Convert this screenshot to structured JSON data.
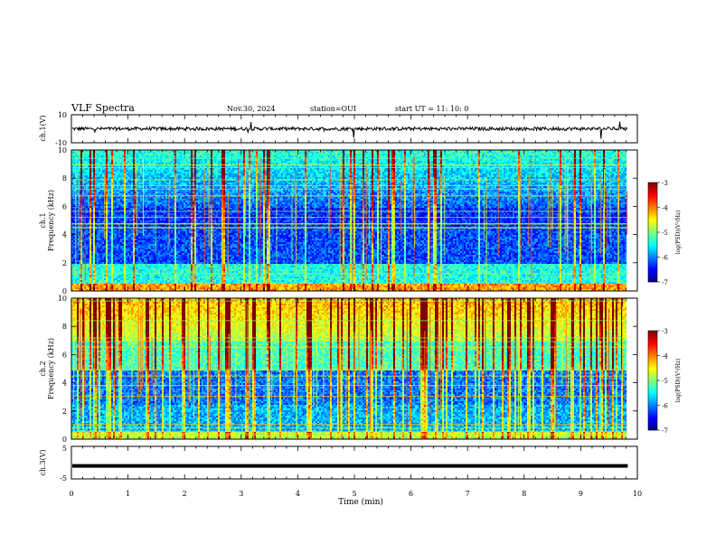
{
  "header": {
    "title": "VLF Spectra",
    "date": "Nov.30, 2024",
    "station": "station=OUI",
    "start": "start  UT =   11: 10: 0"
  },
  "chart_data": [
    {
      "type": "line",
      "name": "ch1-waveform",
      "ylabel": "ch.1(V)",
      "ylim": [
        -10,
        10
      ],
      "yticks": [
        "10",
        "-10"
      ],
      "baseline": 0
    },
    {
      "type": "heatmap",
      "name": "ch1-spectrogram",
      "ylabel1": "ch.1",
      "ylabel2": "Frequency (kHz)",
      "ylim": [
        0,
        10
      ],
      "yticks": [
        "0",
        "2",
        "4",
        "6",
        "8",
        "10"
      ],
      "colorbar": {
        "label": "log(PSD)(V²/Hz)",
        "range": [
          -7,
          -3
        ],
        "ticks": [
          "-3",
          "-4",
          "-5",
          "-6",
          "-7"
        ]
      }
    },
    {
      "type": "heatmap",
      "name": "ch2-spectrogram",
      "ylabel1": "ch.2",
      "ylabel2": "Frequency (kHz)",
      "ylim": [
        0,
        10
      ],
      "yticks": [
        "0",
        "2",
        "4",
        "6",
        "8",
        "10"
      ],
      "colorbar": {
        "label": "log(PSD)(V²/Hz)",
        "range": [
          -7,
          -3
        ],
        "ticks": [
          "-3",
          "-4",
          "-5",
          "-6",
          "-7"
        ]
      }
    },
    {
      "type": "line",
      "name": "ch3-waveform",
      "ylabel": "ch.3(V)",
      "ylim": [
        -5,
        5
      ],
      "yticks": [
        "5",
        "-5"
      ],
      "baseline": -1
    }
  ],
  "xaxis": {
    "label": "Time  (min)",
    "range": [
      0,
      10
    ],
    "data_end": 9.83,
    "ticks": [
      "0",
      "1",
      "2",
      "3",
      "4",
      "5",
      "6",
      "7",
      "8",
      "9",
      "10"
    ]
  },
  "colors": {
    "frame": "#000000",
    "background": "#ffffff"
  }
}
